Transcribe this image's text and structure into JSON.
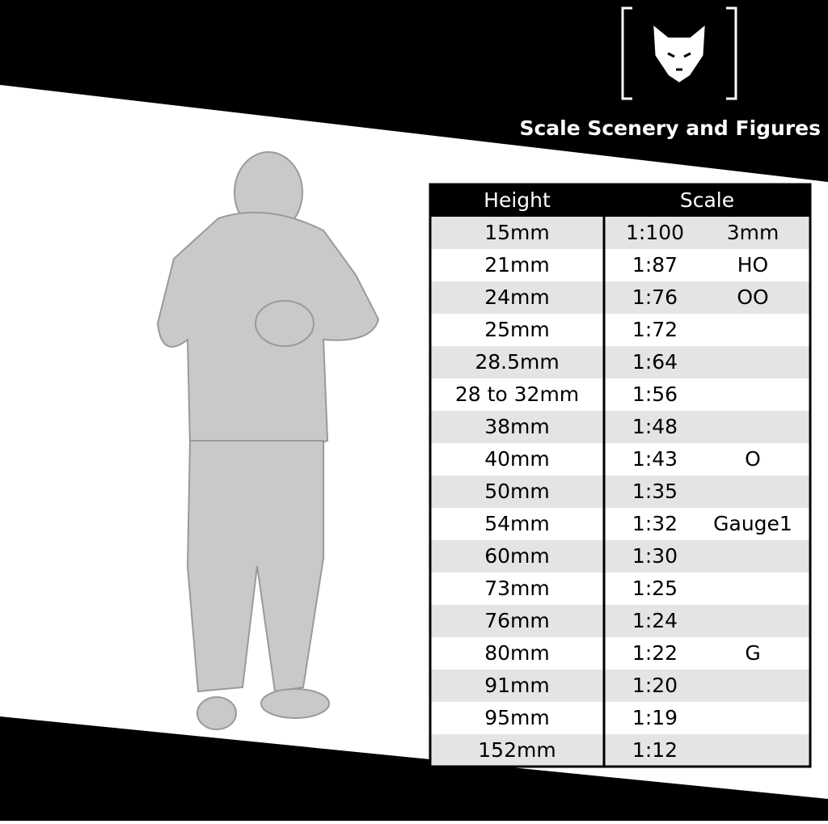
{
  "brand": "Scale Scenery and Figures",
  "table": {
    "header": [
      "Height",
      "Scale"
    ],
    "rows": [
      {
        "height": "15mm",
        "scale": "1:100",
        "gauge": "3mm"
      },
      {
        "height": "21mm",
        "scale": "1:87",
        "gauge": "HO"
      },
      {
        "height": "24mm",
        "scale": "1:76",
        "gauge": "OO"
      },
      {
        "height": "25mm",
        "scale": "1:72"
      },
      {
        "height": "28.5mm",
        "scale": "1:64"
      },
      {
        "height": "28 to 32mm",
        "scale": "1:56"
      },
      {
        "height": "38mm",
        "scale": "1:48"
      },
      {
        "height": "40mm",
        "scale": "1:43",
        "gauge": "O"
      },
      {
        "height": "50mm",
        "scale": "1:35"
      },
      {
        "height": "54mm",
        "scale": "1:32",
        "gauge": "Gauge1"
      },
      {
        "height": "60mm",
        "scale": "1:30"
      },
      {
        "height": "73mm",
        "scale": "1:25"
      },
      {
        "height": "76mm",
        "scale": "1:24"
      },
      {
        "height": "80mm",
        "scale": "1:22",
        "gauge": "G"
      },
      {
        "height": "91mm",
        "scale": "1:20"
      },
      {
        "height": "95mm",
        "scale": "1:19"
      },
      {
        "height": "152mm",
        "scale": "1:12"
      }
    ]
  }
}
